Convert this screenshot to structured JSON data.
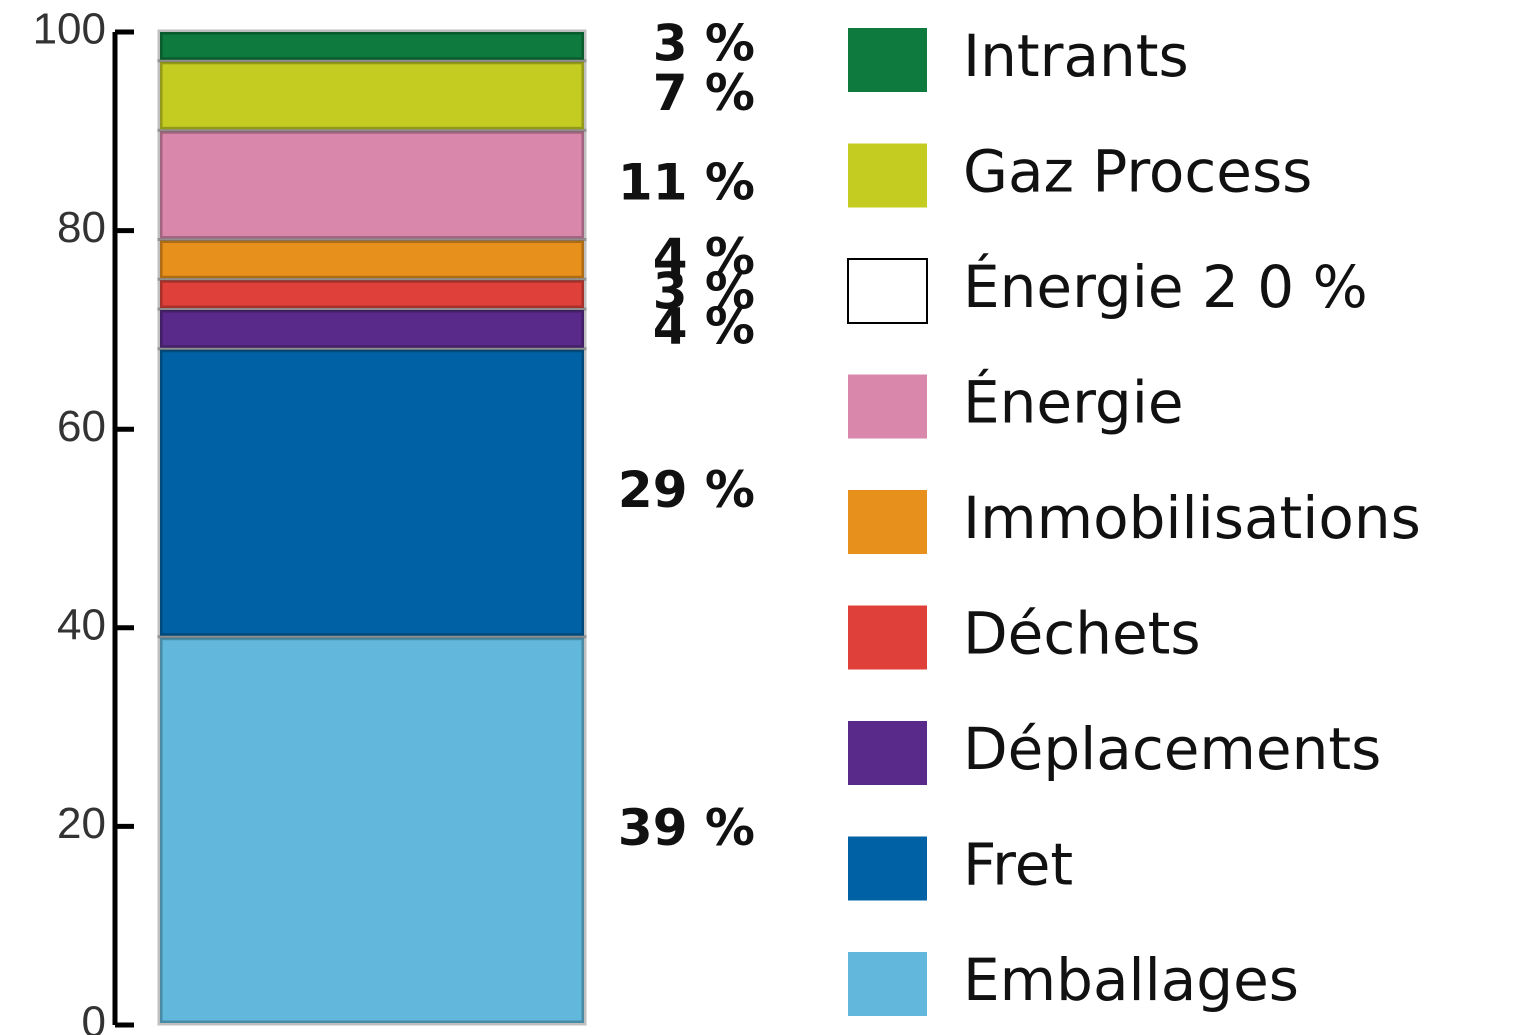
{
  "chart_data": {
    "type": "stacked_bar",
    "categories": [
      null
    ],
    "ylim": [
      0,
      100
    ],
    "yticks": [
      0,
      20,
      40,
      60,
      80,
      100
    ],
    "series": [
      {
        "name": "Intrants",
        "color": "#0e7a3e",
        "values": [
          3
        ],
        "value_labels": [
          "3 %"
        ]
      },
      {
        "name": "Gaz Process",
        "color": "#c4cc22",
        "values": [
          7
        ],
        "value_labels": [
          "7 %"
        ]
      },
      {
        "name": "Énergie 2 0 %",
        "color": "#ffffff",
        "values": [
          0
        ]
      },
      {
        "name": "Énergie",
        "color": "#d987ab",
        "values": [
          11
        ],
        "value_labels": [
          "11 %"
        ]
      },
      {
        "name": "Immobilisations",
        "color": "#e8901c",
        "values": [
          4
        ],
        "value_labels": [
          "4 %"
        ]
      },
      {
        "name": "Déchets",
        "color": "#e0403a",
        "values": [
          3
        ],
        "value_labels": [
          "3 %"
        ]
      },
      {
        "name": "Déplacements",
        "color": "#5a2a8a",
        "values": [
          4
        ],
        "value_labels": [
          "4 %"
        ]
      },
      {
        "name": "Fret",
        "color": "#0062a4",
        "values": [
          29
        ],
        "value_labels": [
          "29 %"
        ]
      },
      {
        "name": "Emballages",
        "color": "#62b8dc",
        "values": [
          39
        ],
        "value_labels": [
          "39 %"
        ]
      }
    ]
  }
}
